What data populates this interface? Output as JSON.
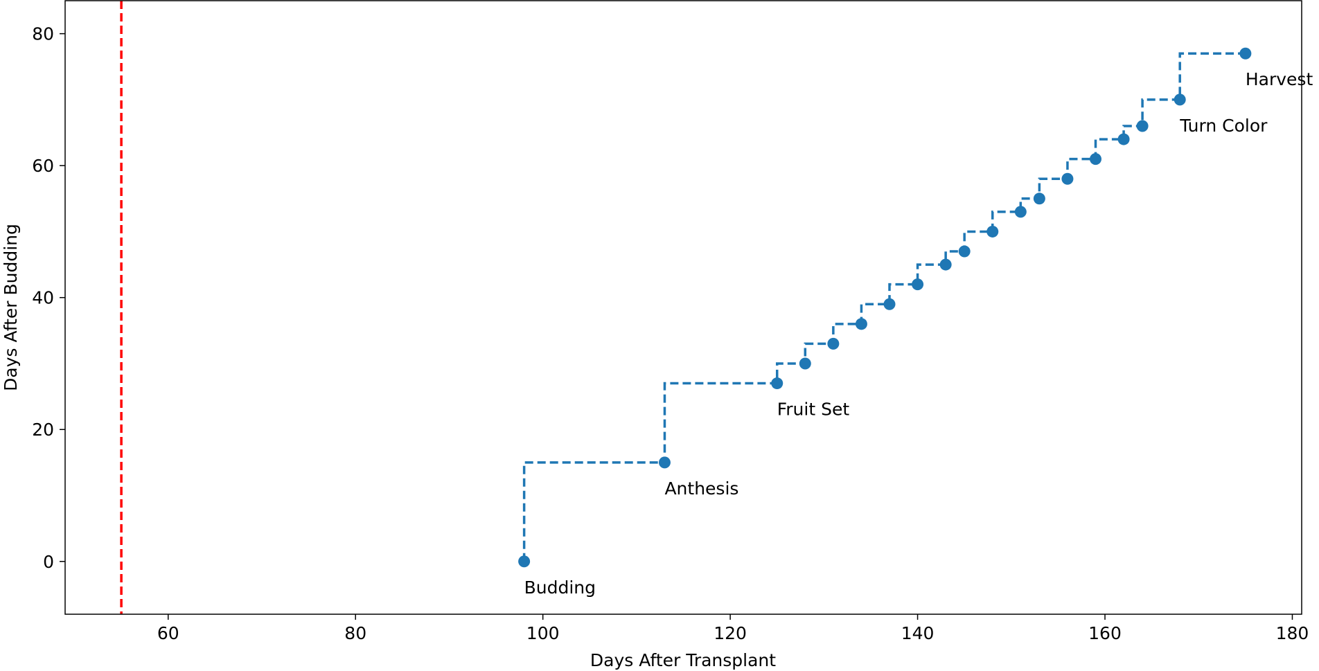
{
  "chart_data": {
    "type": "line",
    "line_style": "step",
    "xlabel": "Days After Transplant",
    "ylabel": "Days After Budding",
    "xlim": [
      49,
      181
    ],
    "ylim": [
      -8,
      85
    ],
    "xticks": [
      60,
      80,
      100,
      120,
      140,
      160,
      180
    ],
    "yticks": [
      0,
      20,
      40,
      60,
      80
    ],
    "grid": false,
    "series": [
      {
        "color": "#1f77b4",
        "points": [
          {
            "x": 98,
            "y": 0
          },
          {
            "x": 113,
            "y": 15
          },
          {
            "x": 125,
            "y": 27
          },
          {
            "x": 128,
            "y": 30
          },
          {
            "x": 131,
            "y": 33
          },
          {
            "x": 134,
            "y": 36
          },
          {
            "x": 137,
            "y": 39
          },
          {
            "x": 140,
            "y": 42
          },
          {
            "x": 143,
            "y": 45
          },
          {
            "x": 145,
            "y": 47
          },
          {
            "x": 148,
            "y": 50
          },
          {
            "x": 151,
            "y": 53
          },
          {
            "x": 153,
            "y": 55
          },
          {
            "x": 156,
            "y": 58
          },
          {
            "x": 159,
            "y": 61
          },
          {
            "x": 162,
            "y": 64
          },
          {
            "x": 164,
            "y": 66
          },
          {
            "x": 168,
            "y": 70
          },
          {
            "x": 175,
            "y": 77
          }
        ]
      }
    ],
    "reference_line": {
      "x": 55,
      "color": "#ff0000"
    },
    "annotations": [
      {
        "text": "Budding",
        "x": 98,
        "y": 0
      },
      {
        "text": "Anthesis",
        "x": 113,
        "y": 15
      },
      {
        "text": "Fruit Set",
        "x": 125,
        "y": 27
      },
      {
        "text": "Turn Color",
        "x": 168,
        "y": 70
      },
      {
        "text": "Harvest",
        "x": 175,
        "y": 77
      }
    ]
  }
}
